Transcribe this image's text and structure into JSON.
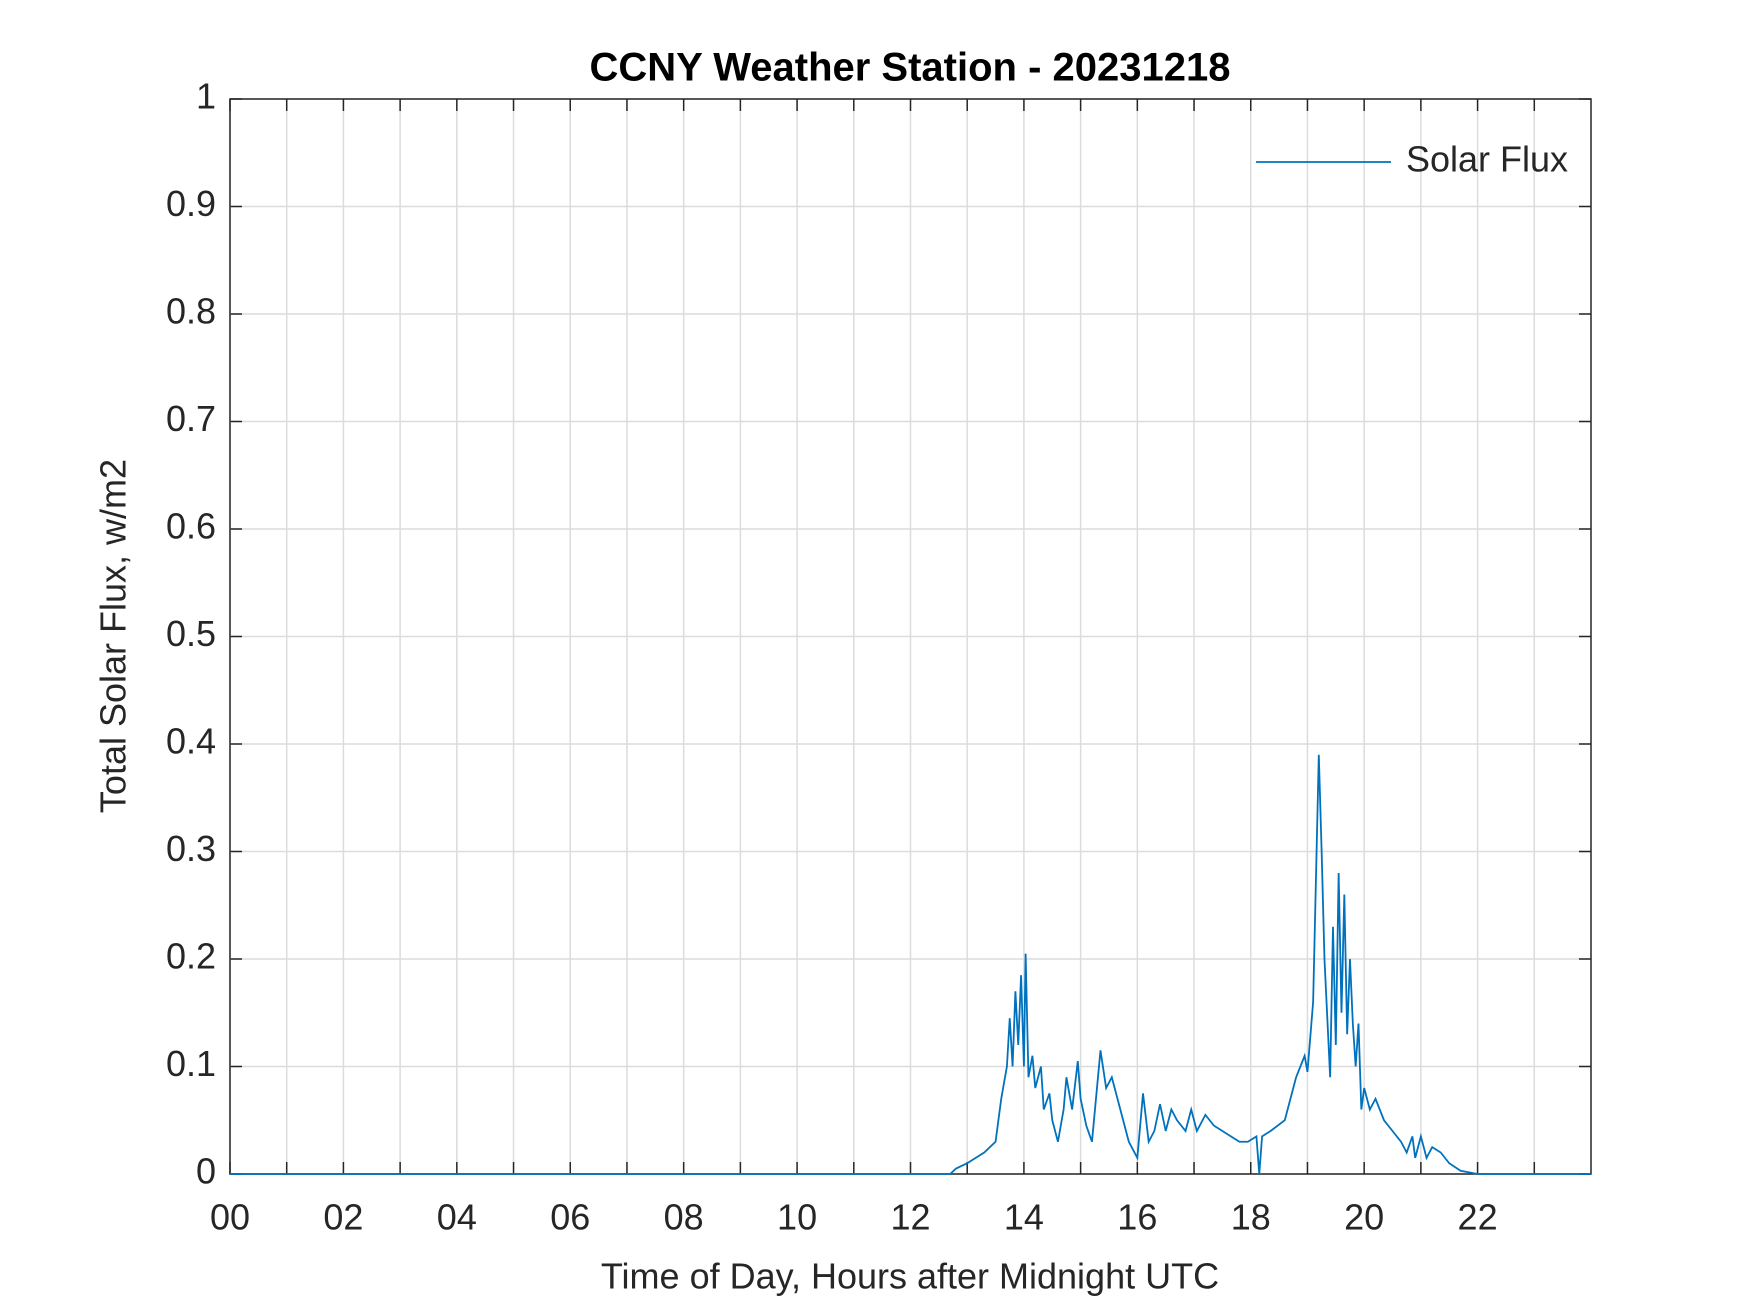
{
  "chart_data": {
    "type": "line",
    "title": "CCNY Weather Station - 20231218",
    "x_label": "Time of Day, Hours after Midnight UTC",
    "y_label": "Total Solar Flux, w/m2",
    "xlim": [
      0,
      24
    ],
    "ylim": [
      0,
      1
    ],
    "xticks": [
      {
        "value": 0,
        "label": "00"
      },
      {
        "value": 2,
        "label": "02"
      },
      {
        "value": 4,
        "label": "04"
      },
      {
        "value": 6,
        "label": "06"
      },
      {
        "value": 8,
        "label": "08"
      },
      {
        "value": 10,
        "label": "10"
      },
      {
        "value": 12,
        "label": "12"
      },
      {
        "value": 14,
        "label": "14"
      },
      {
        "value": 16,
        "label": "16"
      },
      {
        "value": 18,
        "label": "18"
      },
      {
        "value": 20,
        "label": "20"
      },
      {
        "value": 22,
        "label": "22"
      }
    ],
    "xminorticks": [
      1,
      3,
      5,
      7,
      9,
      11,
      13,
      15,
      17,
      19,
      21,
      23
    ],
    "yticks": [
      0,
      0.1,
      0.2,
      0.3,
      0.4,
      0.5,
      0.6,
      0.7,
      0.8,
      0.9,
      1
    ],
    "grid": true,
    "legend_position": "top-right",
    "x": [
      0,
      4,
      8,
      12,
      12.7,
      12.8,
      13.0,
      13.3,
      13.5,
      13.6,
      13.7,
      13.75,
      13.8,
      13.85,
      13.9,
      13.95,
      14.0,
      14.03,
      14.08,
      14.15,
      14.2,
      14.3,
      14.35,
      14.45,
      14.5,
      14.6,
      14.7,
      14.75,
      14.85,
      14.95,
      15.0,
      15.1,
      15.2,
      15.35,
      15.45,
      15.55,
      15.65,
      15.75,
      15.85,
      16.0,
      16.1,
      16.2,
      16.3,
      16.4,
      16.5,
      16.6,
      16.7,
      16.85,
      16.95,
      17.05,
      17.2,
      17.35,
      17.5,
      17.65,
      17.8,
      17.95,
      18.1,
      18.15,
      18.2,
      18.35,
      18.6,
      18.8,
      18.95,
      19.0,
      19.1,
      19.2,
      19.25,
      19.3,
      19.4,
      19.45,
      19.5,
      19.55,
      19.6,
      19.65,
      19.7,
      19.75,
      19.8,
      19.85,
      19.9,
      19.95,
      20.0,
      20.1,
      20.2,
      20.35,
      20.5,
      20.65,
      20.75,
      20.85,
      20.9,
      21.0,
      21.1,
      21.2,
      21.35,
      21.5,
      21.7,
      22.0,
      24
    ],
    "series": [
      {
        "name": "Solar Flux",
        "color": "#0072bd",
        "values": [
          0,
          0,
          0,
          0,
          0,
          0.005,
          0.01,
          0.02,
          0.03,
          0.07,
          0.1,
          0.145,
          0.1,
          0.17,
          0.12,
          0.185,
          0.1,
          0.205,
          0.09,
          0.11,
          0.08,
          0.1,
          0.06,
          0.075,
          0.05,
          0.03,
          0.06,
          0.09,
          0.06,
          0.105,
          0.07,
          0.045,
          0.03,
          0.115,
          0.08,
          0.09,
          0.07,
          0.05,
          0.03,
          0.015,
          0.075,
          0.03,
          0.04,
          0.065,
          0.04,
          0.06,
          0.05,
          0.04,
          0.06,
          0.04,
          0.055,
          0.045,
          0.04,
          0.035,
          0.03,
          0.03,
          0.035,
          0,
          0.035,
          0.04,
          0.05,
          0.09,
          0.11,
          0.095,
          0.16,
          0.39,
          0.3,
          0.2,
          0.09,
          0.23,
          0.12,
          0.28,
          0.15,
          0.26,
          0.13,
          0.2,
          0.14,
          0.1,
          0.14,
          0.06,
          0.08,
          0.06,
          0.07,
          0.05,
          0.04,
          0.03,
          0.02,
          0.035,
          0.015,
          0.035,
          0.015,
          0.025,
          0.02,
          0.01,
          0.003,
          0,
          0
        ]
      }
    ]
  }
}
